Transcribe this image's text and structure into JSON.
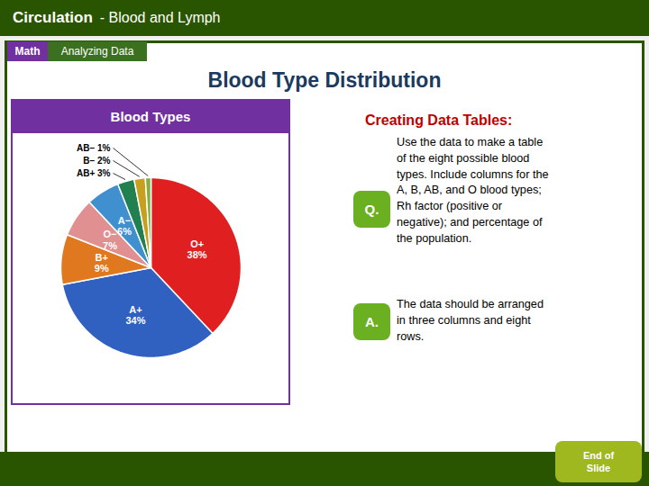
{
  "chart_data": {
    "type": "pie",
    "title": "Blood Type Distribution",
    "subtitle": "Blood Types",
    "categories": [
      "O+",
      "A+",
      "B+",
      "O−",
      "A−",
      "AB+",
      "B−",
      "AB−"
    ],
    "values": [
      38,
      34,
      9,
      7,
      6,
      3,
      2,
      1
    ],
    "value_labels": [
      "38%",
      "34%",
      "9%",
      "7%",
      "6%",
      "3%",
      "2%",
      "1%"
    ],
    "colors": [
      "#e02020",
      "#3060c0",
      "#e07820",
      "#e09090",
      "#4090d0",
      "#208050",
      "#c8a020",
      "#80b040"
    ],
    "data_labels": true,
    "annotations": [
      "Circulation",
      "- Blood and Lymph",
      "Math",
      "Analyzing Data",
      "Creating Data Tables:",
      "Q.",
      "Use the data to make a table\nof the eight possible blood\ntypes. Include columns for the\nA, B, AB, and O blood types;\nRh factor (positive or\nnegative); and percentage of\nthe population.",
      "A.",
      "The data should be arranged\nin three columns and eight\nrows.",
      "End of",
      "Slide"
    ]
  }
}
